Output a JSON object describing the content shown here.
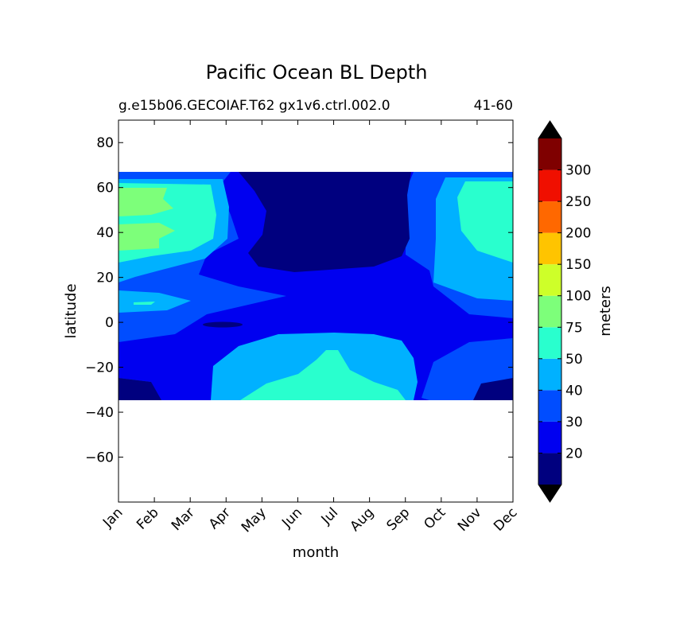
{
  "chart_data": {
    "type": "heatmap",
    "title": "Pacific Ocean BL Depth",
    "subtitle_left": "g.e15b06.GECOIAF.T62 gx1v6.ctrl.002.0",
    "subtitle_right": "41-60",
    "xlabel": "month",
    "ylabel": "latitude",
    "x_categories": [
      "Jan",
      "Feb",
      "Mar",
      "Apr",
      "May",
      "Jun",
      "Jul",
      "Aug",
      "Sep",
      "Oct",
      "Nov",
      "Dec"
    ],
    "ylim": [
      -80,
      90
    ],
    "yticks": [
      80,
      60,
      40,
      20,
      0,
      -20,
      -40,
      -60
    ],
    "ytick_labels": [
      "80",
      "60",
      "40",
      "20",
      "0",
      "−20",
      "−40",
      "−60"
    ],
    "data_lat_range": [
      -34,
      67
    ],
    "colorbar": {
      "label": "meters",
      "levels": [
        20,
        30,
        40,
        50,
        75,
        100,
        150,
        200,
        250,
        300
      ],
      "level_labels": [
        "20",
        "30",
        "40",
        "50",
        "75",
        "100",
        "150",
        "200",
        "250",
        "300"
      ],
      "colors": [
        "#00007f",
        "#0000f0",
        "#004dff",
        "#00b1ff",
        "#29ffce",
        "#7dff7a",
        "#ceff29",
        "#ffc400",
        "#ff6800",
        "#f00f00",
        "#7f0000"
      ],
      "extend_low_color": "#000000",
      "extend_high_color": "#000000"
    },
    "grid": false
  }
}
